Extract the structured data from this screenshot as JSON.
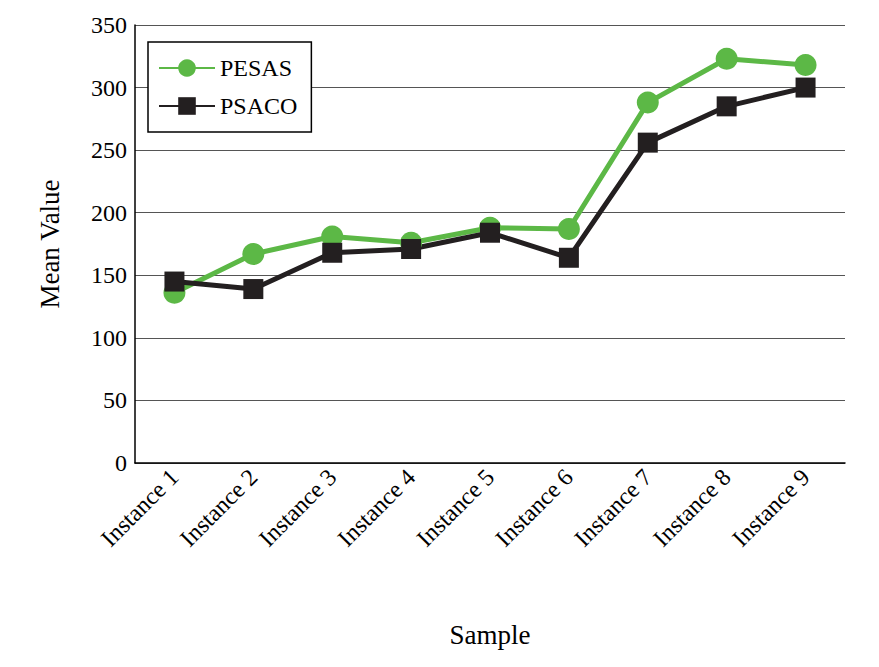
{
  "chart_data": {
    "type": "line",
    "x_label": "Sample",
    "y_label": "Mean Value",
    "categories": [
      "Instance 1",
      "Instance 2",
      "Instance 3",
      "Instance 4",
      "Instance 5",
      "Instance 6",
      "Instance 7",
      "Instance 8",
      "Instance 9"
    ],
    "series": [
      {
        "name": "PESAS",
        "color": "#5cb846",
        "marker": "circle",
        "line_style": "solid",
        "values": [
          136,
          167,
          181,
          176,
          188,
          187,
          288,
          323,
          318
        ]
      },
      {
        "name": "PSACO",
        "color": "#231f20",
        "marker": "square",
        "line_style": "solid",
        "values": [
          145,
          139,
          168,
          171,
          184,
          164,
          256,
          285,
          300
        ]
      }
    ],
    "ylim": [
      0,
      350
    ],
    "yticks": [
      0,
      50,
      100,
      150,
      200,
      250,
      300,
      350
    ],
    "grid": true,
    "legend": "top-left"
  }
}
